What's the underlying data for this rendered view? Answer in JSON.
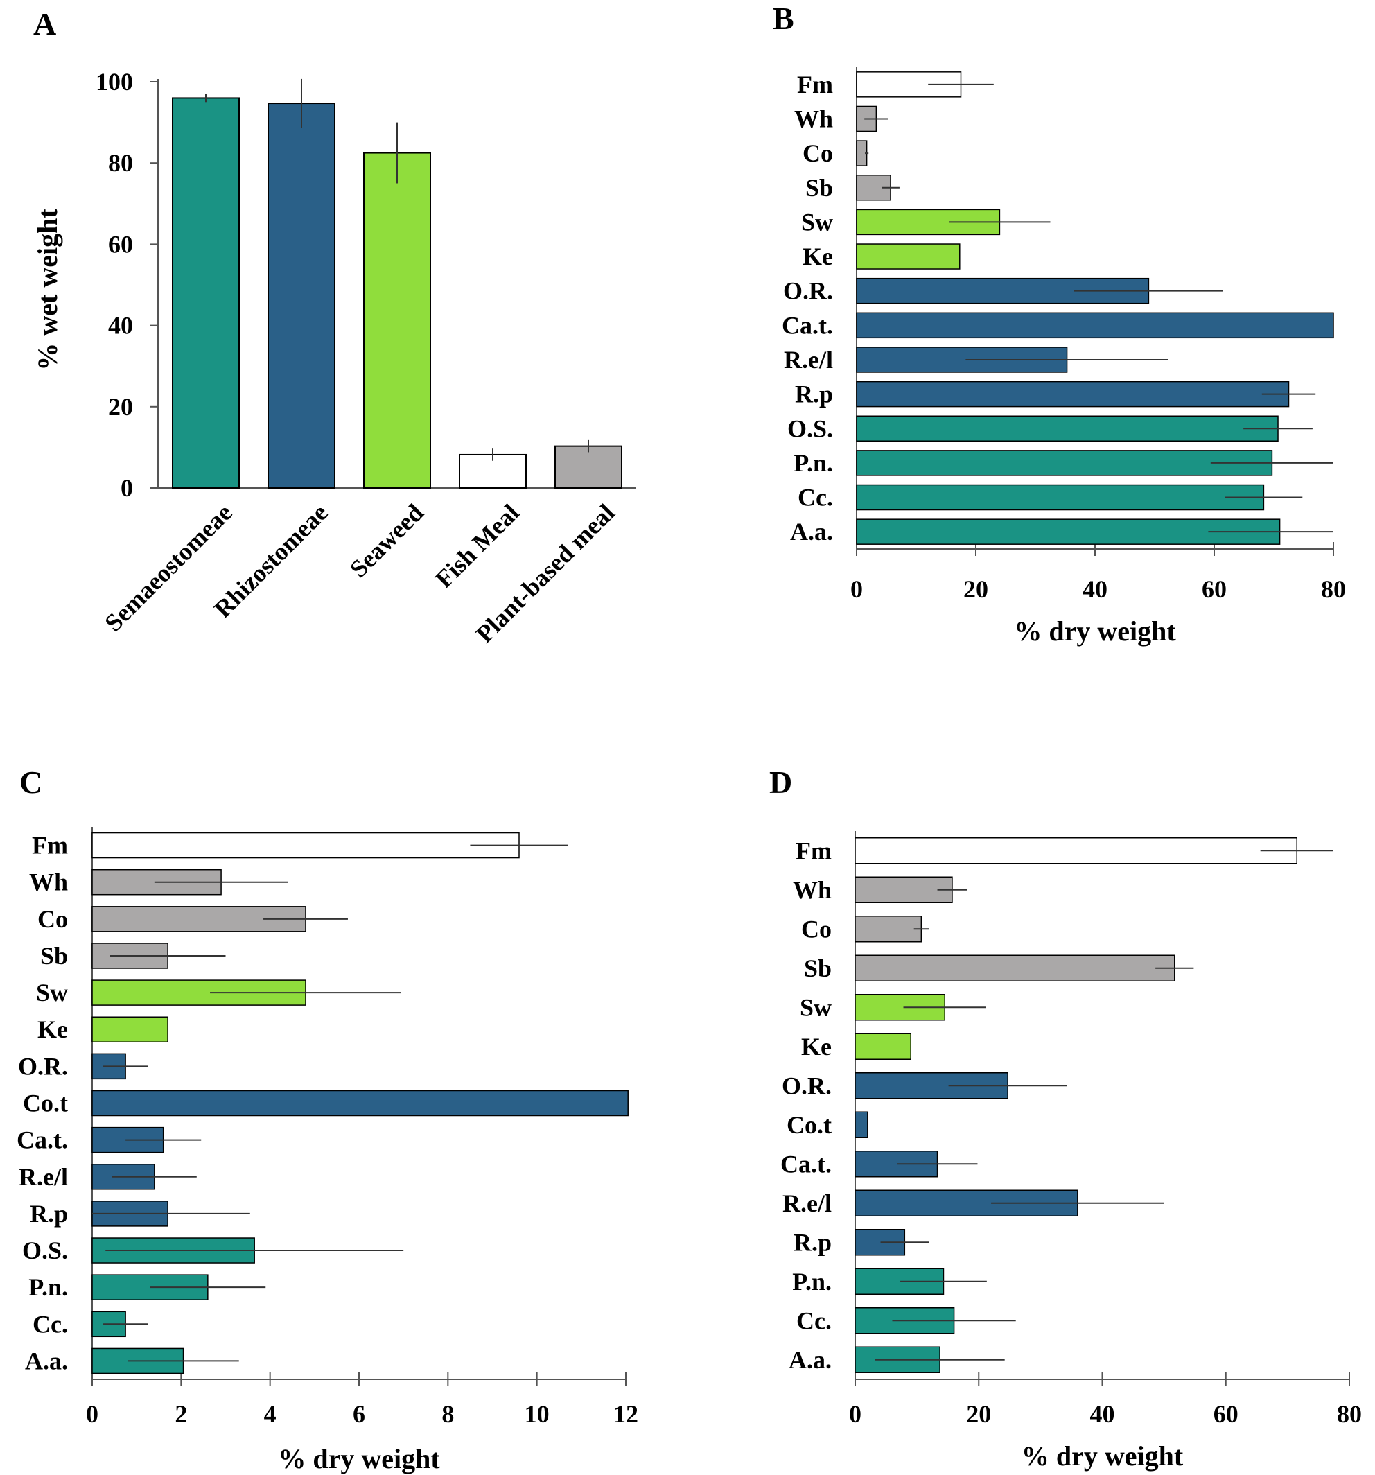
{
  "colors": {
    "semaeostomeae": "#1a9384",
    "rhizostomeae": "#2a6088",
    "seaweed": "#90dd3c",
    "fish_meal": "#ffffff",
    "plant_meal": "#aaa8a8",
    "outline": "#000000",
    "error_bar": "#333333"
  },
  "chart_data": [
    {
      "panel": "A",
      "type": "bar",
      "orientation": "vertical",
      "ylabel": "%  wet weight",
      "xlabel": "",
      "ylim": [
        0,
        100
      ],
      "yticks": [
        "0",
        "20",
        "40",
        "60",
        "80",
        "100"
      ],
      "categories": [
        "Semaeostomeae",
        "Rhizostomeae",
        "Seaweed",
        "Fish Meal",
        "Plant-based meal"
      ],
      "values": [
        96,
        94.7,
        82.5,
        8.2,
        10.3
      ],
      "errors": [
        1,
        6,
        7.5,
        1.5,
        1.5
      ],
      "groups": [
        "semaeostomeae",
        "rhizostomeae",
        "seaweed",
        "fish_meal",
        "plant_meal"
      ]
    },
    {
      "panel": "B",
      "type": "bar",
      "orientation": "horizontal",
      "xlabel": "% dry weight",
      "xlim": [
        0,
        80
      ],
      "xticks": [
        "0",
        "20",
        "40",
        "60",
        "80"
      ],
      "categories": [
        "Fm",
        "Wh",
        "Co",
        "Sb",
        "Sw",
        "Ke",
        "O.R.",
        "Ca.t.",
        "R.e/l",
        "R.p",
        "O.S.",
        "P.n.",
        "Cc.",
        "A.a."
      ],
      "values": [
        17.5,
        3.3,
        1.7,
        5.7,
        24,
        17.3,
        49,
        80,
        35.3,
        72.5,
        70.7,
        69.7,
        68.3,
        71
      ],
      "errors": [
        5.5,
        2,
        0.3,
        1.5,
        8.5,
        0,
        12.5,
        0,
        17,
        4.5,
        5.8,
        10.3,
        6.5,
        12
      ],
      "groups": [
        "fish_meal",
        "plant_meal",
        "plant_meal",
        "plant_meal",
        "seaweed",
        "seaweed",
        "rhizostomeae",
        "rhizostomeae",
        "rhizostomeae",
        "rhizostomeae",
        "semaeostomeae",
        "semaeostomeae",
        "semaeostomeae",
        "semaeostomeae"
      ]
    },
    {
      "panel": "C",
      "type": "bar",
      "orientation": "horizontal",
      "xlabel": "% dry weight",
      "xlim": [
        0,
        12
      ],
      "xticks": [
        "0",
        "2",
        "4",
        "6",
        "8",
        "10",
        "12"
      ],
      "categories": [
        "Fm",
        "Wh",
        "Co",
        "Sb",
        "Sw",
        "Ke",
        "O.R.",
        "Co.t",
        "Ca.t.",
        "R.e/l",
        "R.p",
        "O.S.",
        "P.n.",
        "Cc.",
        "A.a."
      ],
      "values": [
        9.6,
        2.9,
        4.8,
        1.7,
        4.8,
        1.7,
        0.75,
        12.05,
        1.6,
        1.4,
        1.7,
        3.65,
        2.6,
        0.75,
        2.05
      ],
      "errors": [
        1.1,
        1.5,
        0.95,
        1.3,
        2.15,
        0,
        0.5,
        0,
        0.85,
        0.95,
        1.85,
        3.35,
        1.3,
        0.5,
        1.25
      ],
      "groups": [
        "fish_meal",
        "plant_meal",
        "plant_meal",
        "plant_meal",
        "seaweed",
        "seaweed",
        "rhizostomeae",
        "rhizostomeae",
        "rhizostomeae",
        "rhizostomeae",
        "rhizostomeae",
        "semaeostomeae",
        "semaeostomeae",
        "semaeostomeae",
        "semaeostomeae"
      ]
    },
    {
      "panel": "D",
      "type": "bar",
      "orientation": "horizontal",
      "xlabel": "% dry weight",
      "xlim": [
        0,
        80
      ],
      "xticks": [
        "0",
        "20",
        "40",
        "60",
        "80"
      ],
      "categories": [
        "Fm",
        "Wh",
        "Co",
        "Sb",
        "Sw",
        "Ke",
        "O.R.",
        "Co.t",
        "Ca.t.",
        "R.e/l",
        "R.p",
        "P.n.",
        "Cc.",
        "A.a."
      ],
      "values": [
        71.5,
        15.7,
        10.7,
        51.7,
        14.5,
        9,
        24.7,
        2,
        13.3,
        36,
        8,
        14.3,
        16,
        13.7
      ],
      "errors": [
        5.9,
        2.4,
        1.2,
        3.1,
        6.7,
        0,
        9.6,
        0,
        6.5,
        14,
        3.9,
        7,
        10,
        10.5
      ],
      "groups": [
        "fish_meal",
        "plant_meal",
        "plant_meal",
        "plant_meal",
        "seaweed",
        "seaweed",
        "rhizostomeae",
        "rhizostomeae",
        "rhizostomeae",
        "rhizostomeae",
        "rhizostomeae",
        "semaeostomeae",
        "semaeostomeae",
        "semaeostomeae"
      ]
    }
  ]
}
